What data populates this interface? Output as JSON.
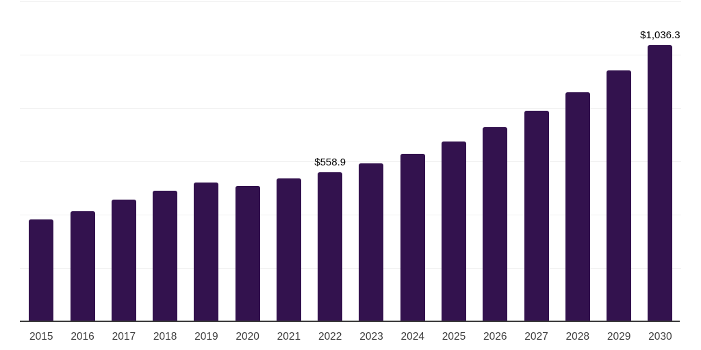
{
  "chart": {
    "background_color": "#ffffff",
    "bar_color": "#33124e",
    "gridline_color": "#f0f0f0",
    "axis_line_color": "#3a3a3a",
    "tick_label_color": "#3d3d3d",
    "value_label_color": "#000000"
  },
  "chart_data": {
    "type": "bar",
    "title": "",
    "xlabel": "",
    "ylabel": "",
    "categories": [
      "2015",
      "2016",
      "2017",
      "2018",
      "2019",
      "2020",
      "2021",
      "2022",
      "2023",
      "2024",
      "2025",
      "2026",
      "2027",
      "2028",
      "2029",
      "2030"
    ],
    "values": [
      381,
      413,
      456,
      490,
      520,
      509,
      536,
      558.9,
      592,
      628,
      674,
      729,
      790,
      858,
      941,
      1036.3
    ],
    "data_labels": [
      null,
      null,
      null,
      null,
      null,
      null,
      null,
      "$558.9",
      null,
      null,
      null,
      null,
      null,
      null,
      null,
      "$1,036.3"
    ],
    "ylim": [
      0,
      1200
    ],
    "grid_interval": 200,
    "grid": true,
    "y_axis_tick_labels_visible": false,
    "legend": false
  }
}
